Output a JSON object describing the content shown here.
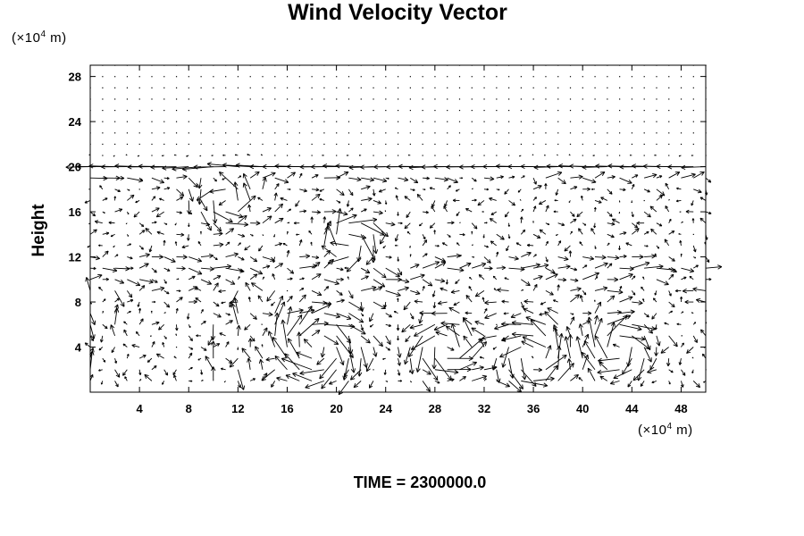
{
  "chart_data": {
    "type": "vector_field",
    "title": "Wind Velocity Vector",
    "ylabel": "Height",
    "xlabel": "",
    "x_unit": {
      "prefix": "(×10",
      "exp": "4",
      "suffix": " m)"
    },
    "y_unit": {
      "prefix": "(×10",
      "exp": "4",
      "suffix": " m)"
    },
    "footer": "TIME = 2300000.0",
    "xlim": [
      0,
      50
    ],
    "ylim": [
      0,
      29
    ],
    "x_ticks": [
      4,
      8,
      12,
      16,
      20,
      24,
      28,
      32,
      36,
      40,
      44,
      48
    ],
    "y_ticks": [
      4,
      8,
      12,
      16,
      20,
      24,
      28
    ],
    "grid": false,
    "grid_dx": 1,
    "grid_dy": 1,
    "vector_color": "#000000",
    "features": {
      "upper_jet": {
        "y": 20,
        "direction": "westward",
        "strength": 1.0
      },
      "lower_jet": {
        "y": 19,
        "direction": "eastward",
        "strength": 0.6
      },
      "eddies": [
        {
          "x": 18.5,
          "y": 4,
          "radius": 4,
          "sense": "clockwise"
        },
        {
          "x": 29,
          "y": 4,
          "radius": 3,
          "sense": "counterclockwise"
        },
        {
          "x": 36,
          "y": 3,
          "radius": 3.5,
          "sense": "counterclockwise"
        },
        {
          "x": 43,
          "y": 4,
          "radius": 3,
          "sense": "clockwise"
        },
        {
          "x": 11,
          "y": 17,
          "radius": 2.5,
          "sense": "counterclockwise"
        },
        {
          "x": 21,
          "y": 13.5,
          "radius": 2.5,
          "sense": "clockwise"
        }
      ]
    }
  }
}
